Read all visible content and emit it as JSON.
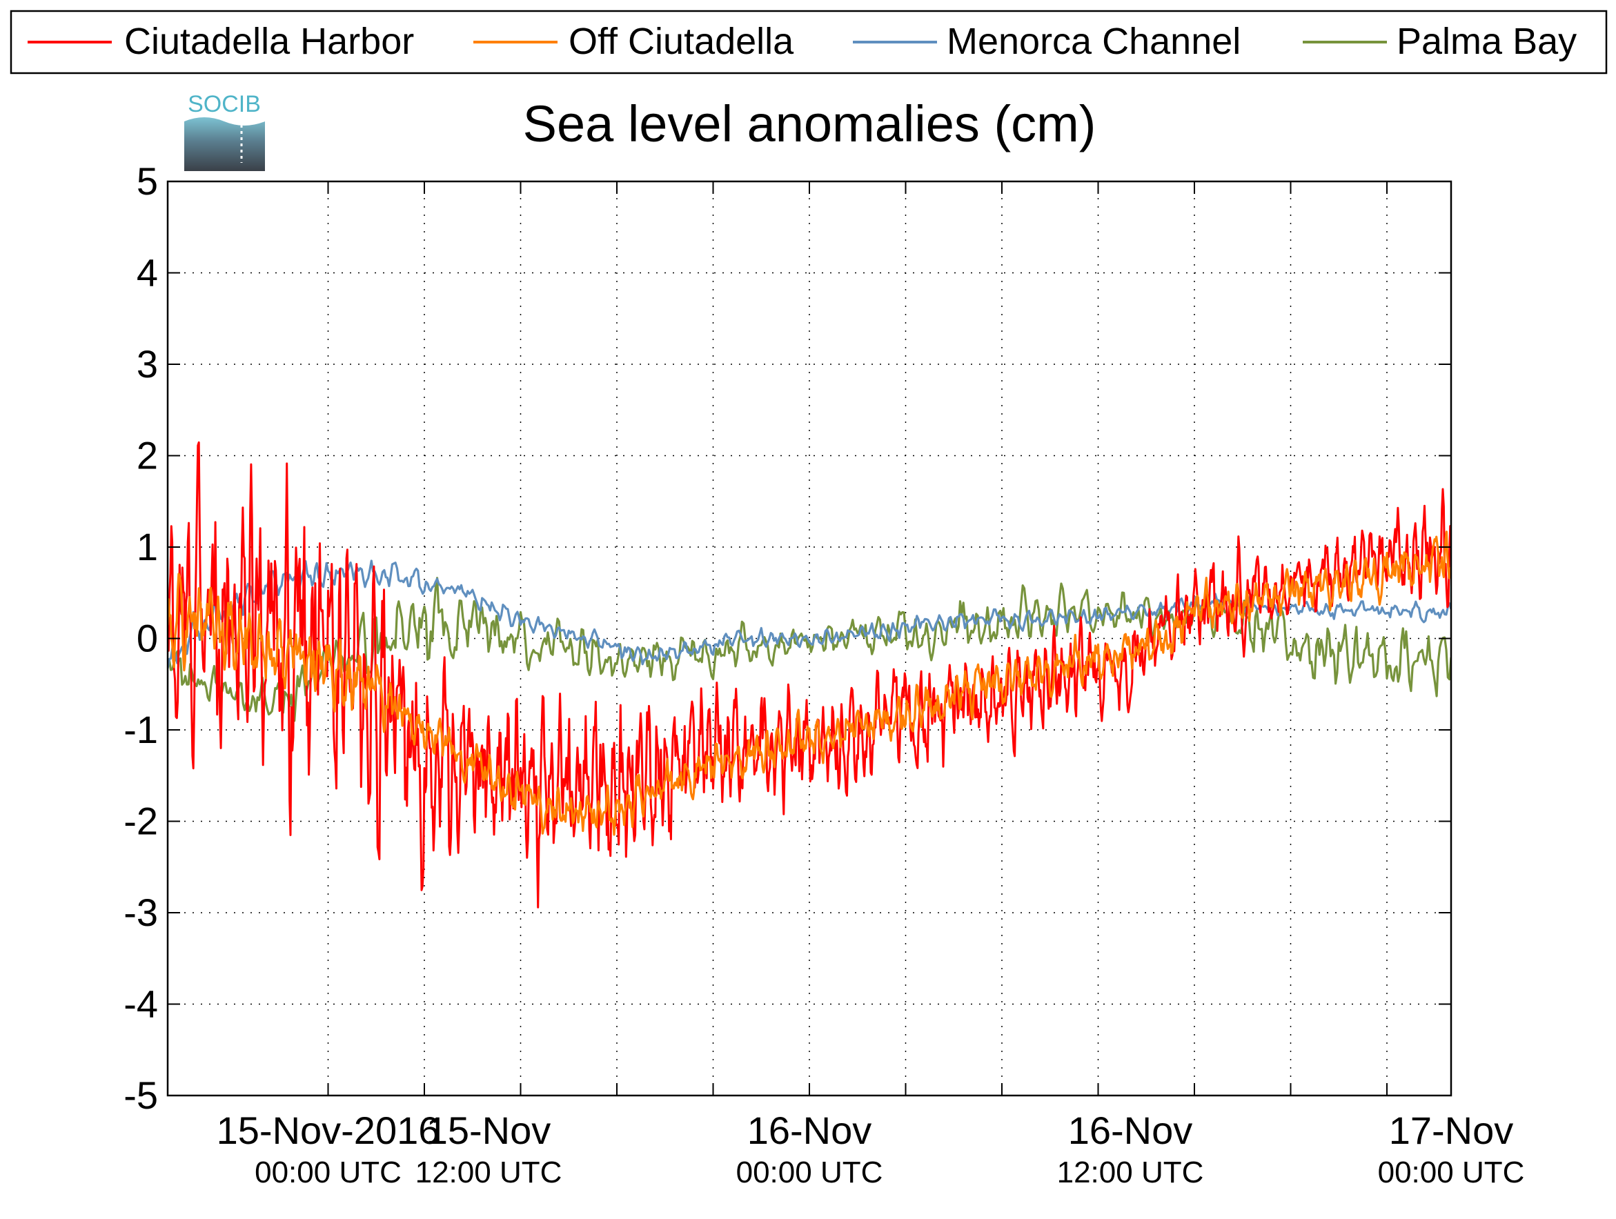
{
  "logo": {
    "text": "SOCIB"
  },
  "chart_data": {
    "type": "line",
    "title": "Sea level anomalies (cm)",
    "xlabel": "",
    "ylabel": "",
    "ylim": [
      -5,
      5
    ],
    "yticks": [
      -5,
      -4,
      -3,
      -2,
      -1,
      0,
      1,
      2,
      3,
      4,
      5
    ],
    "xlim_hours": [
      -10,
      70
    ],
    "xticks": [
      {
        "date": "15-Nov-2016",
        "time": "00:00 UTC"
      },
      {
        "date": "15-Nov",
        "time": "12:00 UTC"
      },
      {
        "date": "16-Nov",
        "time": "00:00 UTC"
      },
      {
        "date": "16-Nov",
        "time": "12:00 UTC"
      },
      {
        "date": "17-Nov",
        "time": "00:00 UTC"
      }
    ],
    "grid": true,
    "legend_position": "top",
    "series": [
      {
        "name": "Ciutadella Harbor",
        "color": "#ff0000",
        "trend": [
          [
            -10,
            0.0
          ],
          [
            -8,
            0.3
          ],
          [
            -4,
            0.4
          ],
          [
            0,
            -0.2
          ],
          [
            2,
            -0.5
          ],
          [
            6,
            -1.3
          ],
          [
            10,
            -1.5
          ],
          [
            13,
            -1.6
          ],
          [
            18,
            -1.6
          ],
          [
            22,
            -1.4
          ],
          [
            26,
            -1.2
          ],
          [
            32,
            -1.1
          ],
          [
            38,
            -0.8
          ],
          [
            44,
            -0.5
          ],
          [
            50,
            -0.2
          ],
          [
            55,
            0.4
          ],
          [
            60,
            0.6
          ],
          [
            65,
            0.8
          ],
          [
            70,
            1.0
          ]
        ],
        "amp": [
          [
            -10,
            1.5
          ],
          [
            -8,
            2.2
          ],
          [
            -4,
            2.4
          ],
          [
            0,
            2.2
          ],
          [
            4,
            2.0
          ],
          [
            6,
            1.7
          ],
          [
            10,
            1.4
          ],
          [
            14,
            1.5
          ],
          [
            18,
            1.4
          ],
          [
            22,
            1.2
          ],
          [
            26,
            1.0
          ],
          [
            30,
            0.8
          ],
          [
            36,
            0.8
          ],
          [
            42,
            0.8
          ],
          [
            48,
            0.7
          ],
          [
            52,
            0.6
          ],
          [
            54,
            0.7
          ],
          [
            57,
            0.7
          ],
          [
            60,
            0.5
          ],
          [
            66,
            0.6
          ],
          [
            70,
            0.9
          ]
        ]
      },
      {
        "name": "Off Ciutadella",
        "color": "#ff8000",
        "trend": [
          [
            -10,
            0.2
          ],
          [
            -8,
            0.2
          ],
          [
            -4,
            -0.1
          ],
          [
            0,
            -0.3
          ],
          [
            2,
            -0.5
          ],
          [
            4,
            -0.7
          ],
          [
            6,
            -1.0
          ],
          [
            10,
            -1.5
          ],
          [
            14,
            -1.9
          ],
          [
            18,
            -1.9
          ],
          [
            22,
            -1.5
          ],
          [
            26,
            -1.3
          ],
          [
            32,
            -1.0
          ],
          [
            38,
            -0.7
          ],
          [
            44,
            -0.4
          ],
          [
            48,
            -0.2
          ],
          [
            52,
            0.0
          ],
          [
            54,
            0.3
          ],
          [
            60,
            0.5
          ],
          [
            66,
            0.7
          ],
          [
            70,
            0.9
          ]
        ],
        "amp": [
          [
            -10,
            0.7
          ],
          [
            -8,
            0.6
          ],
          [
            0,
            0.5
          ],
          [
            6,
            0.35
          ],
          [
            14,
            0.35
          ],
          [
            22,
            0.35
          ],
          [
            30,
            0.35
          ],
          [
            40,
            0.35
          ],
          [
            50,
            0.35
          ],
          [
            60,
            0.3
          ],
          [
            70,
            0.4
          ]
        ]
      },
      {
        "name": "Menorca Channel",
        "color": "#5f8fbf",
        "trend": [
          [
            -10,
            -0.2
          ],
          [
            -7,
            0.2
          ],
          [
            -4,
            0.6
          ],
          [
            0,
            0.7
          ],
          [
            4,
            0.7
          ],
          [
            8,
            0.5
          ],
          [
            12,
            0.2
          ],
          [
            16,
            0.0
          ],
          [
            20,
            -0.2
          ],
          [
            26,
            0.0
          ],
          [
            32,
            0.0
          ],
          [
            38,
            0.2
          ],
          [
            44,
            0.2
          ],
          [
            50,
            0.3
          ],
          [
            56,
            0.4
          ],
          [
            62,
            0.3
          ],
          [
            66,
            0.3
          ],
          [
            70,
            0.3
          ]
        ],
        "amp": [
          [
            -10,
            0.3
          ],
          [
            0,
            0.2
          ],
          [
            10,
            0.15
          ],
          [
            20,
            0.15
          ],
          [
            30,
            0.15
          ],
          [
            40,
            0.15
          ],
          [
            50,
            0.15
          ],
          [
            60,
            0.12
          ],
          [
            70,
            0.15
          ]
        ]
      },
      {
        "name": "Palma Bay",
        "color": "#77933c",
        "trend": [
          [
            -10,
            -0.3
          ],
          [
            -7,
            -0.5
          ],
          [
            -4,
            -0.7
          ],
          [
            -2,
            -0.6
          ],
          [
            0,
            -0.3
          ],
          [
            4,
            0.0
          ],
          [
            8,
            0.2
          ],
          [
            12,
            0.0
          ],
          [
            16,
            -0.1
          ],
          [
            20,
            -0.2
          ],
          [
            26,
            -0.1
          ],
          [
            32,
            0.0
          ],
          [
            38,
            0.1
          ],
          [
            44,
            0.3
          ],
          [
            50,
            0.3
          ],
          [
            56,
            0.2
          ],
          [
            60,
            0.0
          ],
          [
            64,
            -0.2
          ],
          [
            70,
            -0.3
          ]
        ],
        "amp": [
          [
            -10,
            0.35
          ],
          [
            -4,
            0.35
          ],
          [
            0,
            0.35
          ],
          [
            4,
            0.6
          ],
          [
            8,
            0.6
          ],
          [
            12,
            0.45
          ],
          [
            18,
            0.35
          ],
          [
            24,
            0.35
          ],
          [
            30,
            0.3
          ],
          [
            36,
            0.35
          ],
          [
            42,
            0.45
          ],
          [
            48,
            0.35
          ],
          [
            54,
            0.3
          ],
          [
            58,
            0.45
          ],
          [
            64,
            0.55
          ],
          [
            70,
            0.45
          ]
        ]
      }
    ]
  }
}
